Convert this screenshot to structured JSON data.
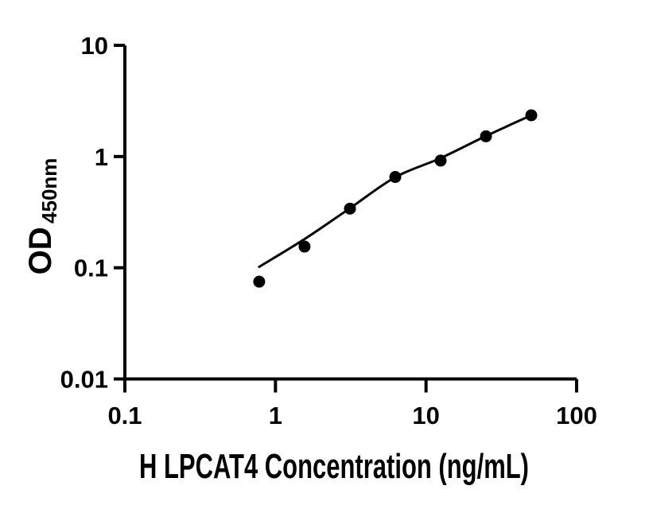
{
  "figure": {
    "background": "#ffffff"
  },
  "chart_data": {
    "type": "scatter",
    "title": "",
    "xlabel": "H LPCAT4 Concentration (ng/mL)",
    "ylabel": "OD450nm",
    "ylabel_main": "OD",
    "ylabel_sub": "450nm",
    "x_scale": "log",
    "y_scale": "log",
    "xlim": [
      0.1,
      100
    ],
    "ylim": [
      0.01,
      10
    ],
    "x_ticks": [
      {
        "value": 0.1,
        "label": "0.1"
      },
      {
        "value": 1,
        "label": "1"
      },
      {
        "value": 10,
        "label": "10"
      },
      {
        "value": 100,
        "label": "100"
      }
    ],
    "y_ticks": [
      {
        "value": 0.01,
        "label": "0.01"
      },
      {
        "value": 0.1,
        "label": "0.1"
      },
      {
        "value": 1,
        "label": "1"
      },
      {
        "value": 10,
        "label": "10"
      }
    ],
    "grid": false,
    "legend": null,
    "axis_color": "#000000",
    "series": [
      {
        "name": "standard-data-points",
        "kind": "scatter",
        "marker": "circle",
        "color": "#000000",
        "x": [
          0.78,
          1.56,
          3.125,
          6.25,
          12.5,
          25,
          50
        ],
        "y": [
          0.075,
          0.155,
          0.34,
          0.655,
          0.92,
          1.52,
          2.35
        ]
      },
      {
        "name": "fitted-standard-curve",
        "kind": "line",
        "color": "#000000",
        "x": [
          0.78,
          1.56,
          3.125,
          6.25,
          12.5,
          25,
          50
        ],
        "y": [
          0.102,
          0.181,
          0.343,
          0.652,
          0.968,
          1.53,
          2.35
        ]
      }
    ]
  }
}
